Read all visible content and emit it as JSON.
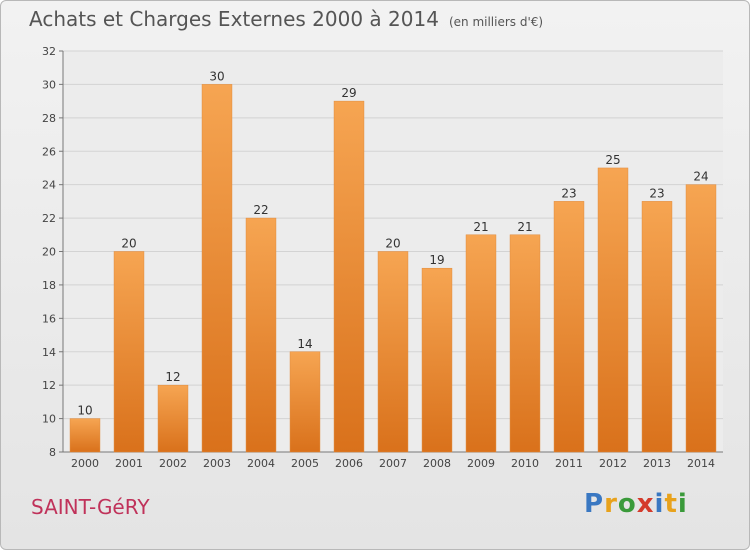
{
  "header": {
    "title": "Achats et Charges Externes 2000 à 2014",
    "unit": "(en milliers d'€)"
  },
  "footer": {
    "commune": "SAINT-GéRY",
    "logo_letters": [
      "P",
      "r",
      "o",
      "x",
      "i",
      "t",
      "i"
    ],
    "logo_colors": [
      "#3a78c2",
      "#e8a21c",
      "#3a9a3a",
      "#d43b2c",
      "#3a78c2",
      "#e8a21c",
      "#3a9a3a"
    ]
  },
  "colors": {
    "bar_top": "#f6a552",
    "bar_bottom": "#d9711b",
    "grid": "#d3d3d3"
  },
  "chart_data": {
    "type": "bar",
    "categories": [
      "2000",
      "2001",
      "2002",
      "2003",
      "2004",
      "2005",
      "2006",
      "2007",
      "2008",
      "2009",
      "2010",
      "2011",
      "2012",
      "2013",
      "2014"
    ],
    "values": [
      10,
      20,
      12,
      30,
      22,
      14,
      29,
      20,
      19,
      21,
      21,
      23,
      25,
      23,
      24
    ],
    "ylim": [
      8,
      32
    ],
    "yticks": [
      8,
      10,
      12,
      14,
      16,
      18,
      20,
      22,
      24,
      26,
      28,
      30,
      32
    ],
    "grid": true
  }
}
